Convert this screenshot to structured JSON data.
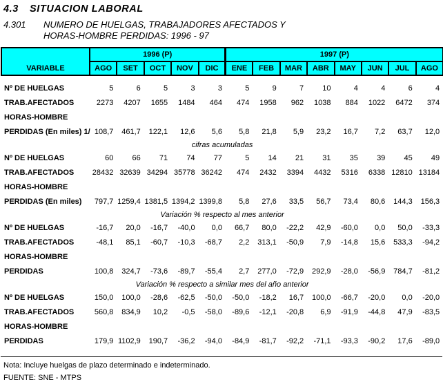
{
  "page": {
    "section_number": "4.3",
    "section_title": "SITUACION LABORAL",
    "table_number": "4.301",
    "table_title_line1": "NUMERO DE HUELGAS, TRABAJADORES AFECTADOS Y",
    "table_title_line2": "HORAS-HOMBRE PERDIDAS: 1996 - 97"
  },
  "colors": {
    "header_background": "#00FFFF",
    "border": "#000000"
  },
  "table": {
    "variable_header": "VARIABLE",
    "year_groups": [
      {
        "label": "1996 (P)",
        "months": [
          "AGO",
          "SET",
          "OCT",
          "NOV",
          "DIC"
        ]
      },
      {
        "label": "1997 (P)",
        "months": [
          "ENE",
          "FEB",
          "MAR",
          "ABR",
          "MAY",
          "JUN",
          "JUL",
          "AGO"
        ]
      }
    ],
    "sections": [
      {
        "caption": "",
        "rows": [
          {
            "label": "Nº DE HUELGAS",
            "values": [
              "5",
              "6",
              "5",
              "3",
              "3",
              "5",
              "9",
              "7",
              "10",
              "4",
              "4",
              "6",
              "4"
            ]
          },
          {
            "label": "TRAB.AFECTADOS",
            "values": [
              "2273",
              "4207",
              "1655",
              "1484",
              "464",
              "474",
              "1958",
              "962",
              "1038",
              "884",
              "1022",
              "6472",
              "374"
            ]
          },
          {
            "label": "HORAS-HOMBRE",
            "values": [
              "",
              "",
              "",
              "",
              "",
              "",
              "",
              "",
              "",
              "",
              "",
              "",
              ""
            ]
          },
          {
            "label": "PERDIDAS (En miles) 1/",
            "values": [
              "108,7",
              "461,7",
              "122,1",
              "12,6",
              "5,6",
              "5,8",
              "21,8",
              "5,9",
              "23,2",
              "16,7",
              "7,2",
              "63,7",
              "12,0"
            ]
          }
        ]
      },
      {
        "caption": "cifras acumuladas",
        "rows": [
          {
            "label": "Nº DE HUELGAS",
            "values": [
              "60",
              "66",
              "71",
              "74",
              "77",
              "5",
              "14",
              "21",
              "31",
              "35",
              "39",
              "45",
              "49"
            ]
          },
          {
            "label": "TRAB.AFECTADOS",
            "values": [
              "28432",
              "32639",
              "34294",
              "35778",
              "36242",
              "474",
              "2432",
              "3394",
              "4432",
              "5316",
              "6338",
              "12810",
              "13184"
            ]
          },
          {
            "label": "HORAS-HOMBRE",
            "values": [
              "",
              "",
              "",
              "",
              "",
              "",
              "",
              "",
              "",
              "",
              "",
              "",
              ""
            ]
          },
          {
            "label": "PERDIDAS (En miles)",
            "values": [
              "797,7",
              "1259,4",
              "1381,5",
              "1394,2",
              "1399,8",
              "5,8",
              "27,6",
              "33,5",
              "56,7",
              "73,4",
              "80,6",
              "144,3",
              "156,3"
            ]
          }
        ]
      },
      {
        "caption": "Variación %  respecto al mes anterior",
        "rows": [
          {
            "label": "Nº DE HUELGAS",
            "values": [
              "-16,7",
              "20,0",
              "-16,7",
              "-40,0",
              "0,0",
              "66,7",
              "80,0",
              "-22,2",
              "42,9",
              "-60,0",
              "0,0",
              "50,0",
              "-33,3"
            ]
          },
          {
            "label": "TRAB.AFECTADOS",
            "values": [
              "-48,1",
              "85,1",
              "-60,7",
              "-10,3",
              "-68,7",
              "2,2",
              "313,1",
              "-50,9",
              "7,9",
              "-14,8",
              "15,6",
              "533,3",
              "-94,2"
            ]
          },
          {
            "label": "HORAS-HOMBRE",
            "values": [
              "",
              "",
              "",
              "",
              "",
              "",
              "",
              "",
              "",
              "",
              "",
              "",
              ""
            ]
          },
          {
            "label": "PERDIDAS",
            "values": [
              "100,8",
              "324,7",
              "-73,6",
              "-89,7",
              "-55,4",
              "2,7",
              "277,0",
              "-72,9",
              "292,9",
              "-28,0",
              "-56,9",
              "784,7",
              "-81,2"
            ]
          }
        ]
      },
      {
        "caption": "Variación % respecto a similar mes del año anterior",
        "rows": [
          {
            "label": "Nº DE HUELGAS",
            "values": [
              "150,0",
              "100,0",
              "-28,6",
              "-62,5",
              "-50,0",
              "-50,0",
              "-18,2",
              "16,7",
              "100,0",
              "-66,7",
              "-20,0",
              "0,0",
              "-20,0"
            ]
          },
          {
            "label": "TRAB.AFECTADOS",
            "values": [
              "560,8",
              "834,9",
              "10,2",
              "-0,5",
              "-58,0",
              "-89,6",
              "-12,1",
              "-20,8",
              "6,9",
              "-91,9",
              "-44,8",
              "47,9",
              "-83,5"
            ]
          },
          {
            "label": "HORAS-HOMBRE",
            "values": [
              "",
              "",
              "",
              "",
              "",
              "",
              "",
              "",
              "",
              "",
              "",
              "",
              ""
            ]
          },
          {
            "label": "PERDIDAS",
            "values": [
              "179,9",
              "1102,9",
              "190,7",
              "-36,2",
              "-94,0",
              "-84,9",
              "-81,7",
              "-92,2",
              "-71,1",
              "-93,3",
              "-90,2",
              "17,6",
              "-89,0"
            ]
          }
        ]
      }
    ]
  },
  "footer": {
    "note": "Nota: Incluye huelgas de plazo determinado e indeterminado.",
    "source": "FUENTE: SNE - MTPS"
  }
}
